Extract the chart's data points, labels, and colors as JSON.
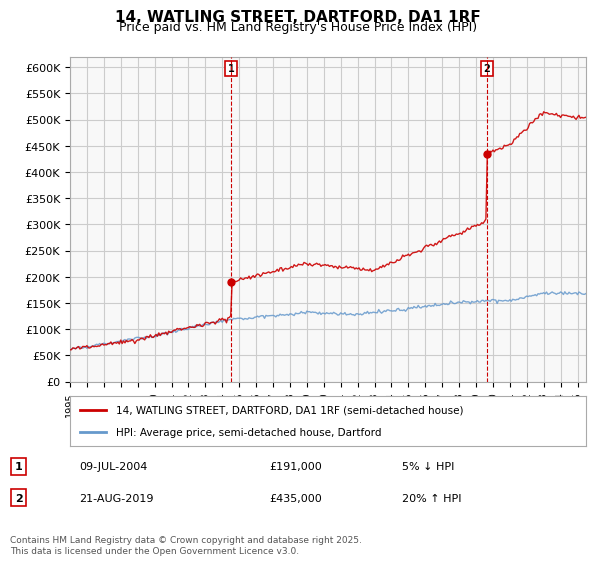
{
  "title": "14, WATLING STREET, DARTFORD, DA1 1RF",
  "subtitle": "Price paid vs. HM Land Registry's House Price Index (HPI)",
  "ylabel_ticks": [
    "£0",
    "£50K",
    "£100K",
    "£150K",
    "£200K",
    "£250K",
    "£300K",
    "£350K",
    "£400K",
    "£450K",
    "£500K",
    "£550K",
    "£600K"
  ],
  "ytick_values": [
    0,
    50000,
    100000,
    150000,
    200000,
    250000,
    300000,
    350000,
    400000,
    450000,
    500000,
    550000,
    600000
  ],
  "ylim": [
    0,
    620000
  ],
  "xlim_start": 1995.0,
  "xlim_end": 2025.5,
  "sale1": {
    "year": 2004.53,
    "price": 191000,
    "label": "1"
  },
  "sale2": {
    "year": 2019.64,
    "price": 435000,
    "label": "2"
  },
  "annotation1": {
    "date": "09-JUL-2004",
    "price": "£191,000",
    "pct": "5% ↓ HPI"
  },
  "annotation2": {
    "date": "21-AUG-2019",
    "price": "£435,000",
    "pct": "20% ↑ HPI"
  },
  "line_color_property": "#cc0000",
  "line_color_hpi": "#6699cc",
  "legend_label1": "14, WATLING STREET, DARTFORD, DA1 1RF (semi-detached house)",
  "legend_label2": "HPI: Average price, semi-detached house, Dartford",
  "footer": "Contains HM Land Registry data © Crown copyright and database right 2025.\nThis data is licensed under the Open Government Licence v3.0.",
  "background_color": "#f8f8f8",
  "grid_color": "#cccccc",
  "vline_color": "#cc0000",
  "title_fontsize": 11,
  "subtitle_fontsize": 9,
  "tick_fontsize": 8
}
